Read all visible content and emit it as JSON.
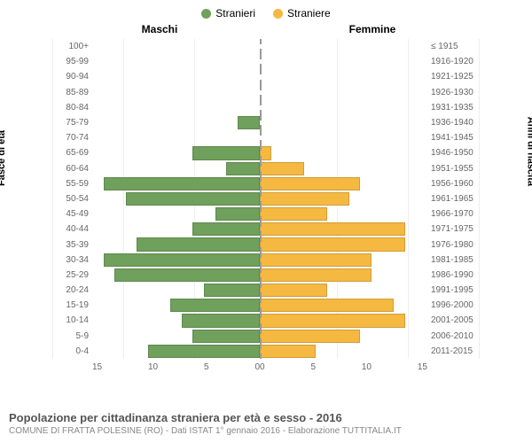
{
  "legend": {
    "male": {
      "label": "Stranieri",
      "color": "#6fa05c"
    },
    "female": {
      "label": "Straniere",
      "color": "#f5b942"
    }
  },
  "headers": {
    "male": "Maschi",
    "female": "Femmine"
  },
  "y_labels": {
    "left": "Fasce di età",
    "right": "Anni di nascita"
  },
  "chart": {
    "type": "population-pyramid",
    "x_max": 15,
    "x_ticks_left": [
      "15",
      "10",
      "5",
      "0"
    ],
    "x_ticks_right": [
      "0",
      "5",
      "10",
      "15"
    ],
    "bar_colors": {
      "male": "#6fa05c",
      "female": "#f5b942"
    },
    "background": "#ffffff",
    "grid_color": "#eeeeee",
    "divider_color": "#999999",
    "rows": [
      {
        "age": "100+",
        "birth": "≤ 1915",
        "m": 0,
        "f": 0
      },
      {
        "age": "95-99",
        "birth": "1916-1920",
        "m": 0,
        "f": 0
      },
      {
        "age": "90-94",
        "birth": "1921-1925",
        "m": 0,
        "f": 0
      },
      {
        "age": "85-89",
        "birth": "1926-1930",
        "m": 0,
        "f": 0
      },
      {
        "age": "80-84",
        "birth": "1931-1935",
        "m": 0,
        "f": 0
      },
      {
        "age": "75-79",
        "birth": "1936-1940",
        "m": 2,
        "f": 0
      },
      {
        "age": "70-74",
        "birth": "1941-1945",
        "m": 0,
        "f": 0
      },
      {
        "age": "65-69",
        "birth": "1946-1950",
        "m": 6,
        "f": 1
      },
      {
        "age": "60-64",
        "birth": "1951-1955",
        "m": 3,
        "f": 4
      },
      {
        "age": "55-59",
        "birth": "1956-1960",
        "m": 14,
        "f": 9
      },
      {
        "age": "50-54",
        "birth": "1961-1965",
        "m": 12,
        "f": 8
      },
      {
        "age": "45-49",
        "birth": "1966-1970",
        "m": 4,
        "f": 6
      },
      {
        "age": "40-44",
        "birth": "1971-1975",
        "m": 6,
        "f": 13
      },
      {
        "age": "35-39",
        "birth": "1976-1980",
        "m": 11,
        "f": 13
      },
      {
        "age": "30-34",
        "birth": "1981-1985",
        "m": 14,
        "f": 10
      },
      {
        "age": "25-29",
        "birth": "1986-1990",
        "m": 13,
        "f": 10
      },
      {
        "age": "20-24",
        "birth": "1991-1995",
        "m": 5,
        "f": 6
      },
      {
        "age": "15-19",
        "birth": "1996-2000",
        "m": 8,
        "f": 12
      },
      {
        "age": "10-14",
        "birth": "2001-2005",
        "m": 7,
        "f": 13
      },
      {
        "age": "5-9",
        "birth": "2006-2010",
        "m": 6,
        "f": 9
      },
      {
        "age": "0-4",
        "birth": "2011-2015",
        "m": 10,
        "f": 5
      }
    ]
  },
  "footer": {
    "title": "Popolazione per cittadinanza straniera per età e sesso - 2016",
    "subtitle": "COMUNE DI FRATTA POLESINE (RO) - Dati ISTAT 1° gennaio 2016 - Elaborazione TUTTITALIA.IT"
  }
}
